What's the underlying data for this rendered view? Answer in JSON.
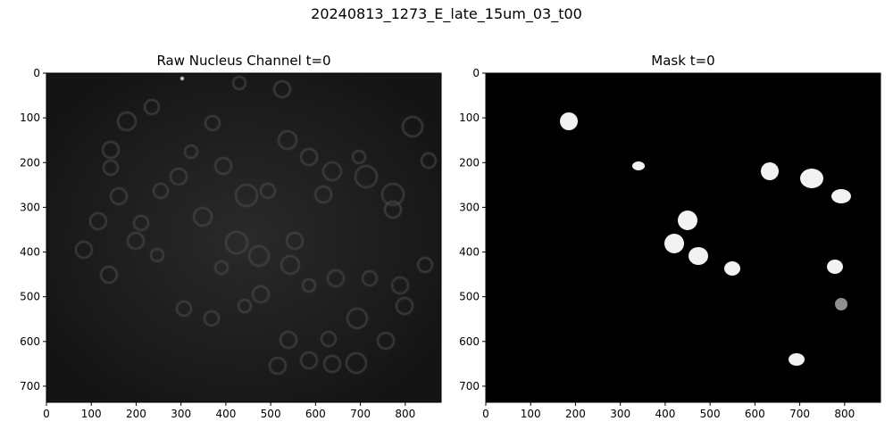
{
  "figure": {
    "suptitle": "20240813_1273_E_late_15um_03_t00",
    "panels": [
      {
        "title": "Raw Nucleus Channel t=0",
        "image": "grayscale-microscopy-nuclei",
        "x_ticks": [
          "0",
          "100",
          "200",
          "300",
          "400",
          "500",
          "600",
          "700",
          "800"
        ],
        "y_ticks": [
          "0",
          "100",
          "200",
          "300",
          "400",
          "500",
          "600",
          "700"
        ]
      },
      {
        "title": "Mask t=0",
        "image": "binary-segmentation-mask",
        "x_ticks": [
          "0",
          "100",
          "200",
          "300",
          "400",
          "500",
          "600",
          "700",
          "800"
        ],
        "y_ticks": [
          "0",
          "100",
          "200",
          "300",
          "400",
          "500",
          "600",
          "700"
        ]
      }
    ],
    "image_extent": {
      "width": 880,
      "height": 736
    }
  },
  "colors": {
    "background": "#ffffff",
    "image_bg": "#000000",
    "mask_fg": "#ffffff",
    "mask_dim": "#8f8f8f"
  }
}
